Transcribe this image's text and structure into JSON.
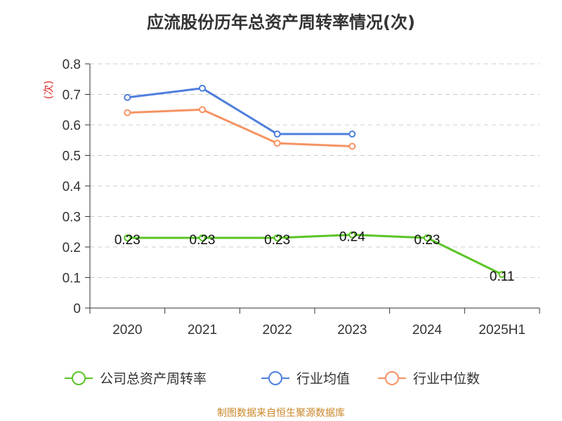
{
  "title": "应流股份历年总资产周转率情况(次)",
  "footer": "制图数据来自恒生聚源数据库",
  "chart_data": {
    "type": "line",
    "title": "应流股份历年总资产周转率情况(次)",
    "ylabel": "(次)",
    "xlabel": "",
    "categories": [
      "2020",
      "2021",
      "2022",
      "2023",
      "2024",
      "2025H1"
    ],
    "ylim": [
      0,
      0.8
    ],
    "yticks": [
      "0",
      "0.1",
      "0.2",
      "0.3",
      "0.4",
      "0.5",
      "0.6",
      "0.7",
      "0.8"
    ],
    "grid": true,
    "legend_position": "bottom",
    "series": [
      {
        "name": "公司总资产周转率",
        "color": "#5ac426",
        "values": [
          0.23,
          0.23,
          0.23,
          0.24,
          0.23,
          0.11
        ],
        "data_labels": [
          "0.23",
          "0.23",
          "0.23",
          "0.24",
          "0.23",
          "0.11"
        ]
      },
      {
        "name": "行业均值",
        "color": "#4f7fdc",
        "values": [
          0.69,
          0.72,
          0.57,
          0.57,
          null,
          null
        ]
      },
      {
        "name": "行业中位数",
        "color": "#f59363",
        "values": [
          0.64,
          0.65,
          0.54,
          0.53,
          null,
          null
        ]
      }
    ]
  }
}
